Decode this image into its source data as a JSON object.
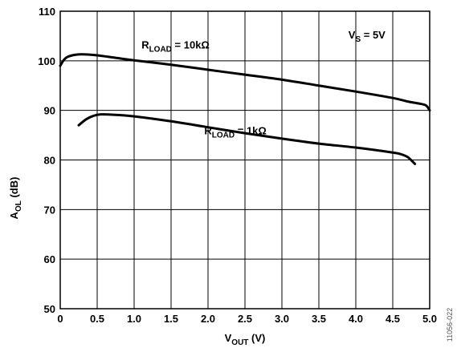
{
  "chart_data": {
    "type": "line",
    "xlabel": {
      "main": "V",
      "sub": "OUT",
      "unit": " (V)"
    },
    "ylabel": {
      "main": "A",
      "sub": "OL",
      "unit": " (dB)"
    },
    "xlim": [
      0,
      5
    ],
    "ylim": [
      50,
      110
    ],
    "grid": true,
    "x_ticks": [
      0,
      0.5,
      1.0,
      1.5,
      2.0,
      2.5,
      3.0,
      3.5,
      4.0,
      4.5,
      5.0
    ],
    "x_tick_labels": [
      "0",
      "0.5",
      "1.0",
      "1.5",
      "2.0",
      "2.5",
      "3.0",
      "3.5",
      "4.0",
      "4.5",
      "5.0"
    ],
    "y_ticks": [
      50,
      60,
      70,
      80,
      90,
      100,
      110
    ],
    "y_tick_labels": [
      "50",
      "60",
      "70",
      "80",
      "90",
      "100",
      "110"
    ],
    "annotations": [
      {
        "main": "V",
        "sub": "S",
        "rest": " = 5V",
        "x": 3.9,
        "y": 104.5
      },
      {
        "main": "R",
        "sub": "LOAD",
        "rest": " = 10kΩ",
        "x": 1.1,
        "y": 102.5
      },
      {
        "main": "R",
        "sub": "LOAD",
        "rest": " = 1kΩ",
        "x": 1.95,
        "y": 85.2
      }
    ],
    "series": [
      {
        "name": "R_LOAD = 10kΩ",
        "x": [
          0,
          0.05,
          0.1,
          0.2,
          0.3,
          0.5,
          0.75,
          1.0,
          1.5,
          2.0,
          2.5,
          3.0,
          3.5,
          4.0,
          4.5,
          4.7,
          4.85,
          4.95,
          5.0
        ],
        "y": [
          99.0,
          100.2,
          100.8,
          101.2,
          101.3,
          101.1,
          100.6,
          100.1,
          99.2,
          98.2,
          97.2,
          96.2,
          95.0,
          93.8,
          92.5,
          91.8,
          91.4,
          91.0,
          90.0
        ]
      },
      {
        "name": "R_LOAD = 1kΩ",
        "x": [
          0.25,
          0.35,
          0.45,
          0.55,
          0.75,
          1.0,
          1.5,
          2.0,
          2.5,
          3.0,
          3.5,
          4.0,
          4.5,
          4.6,
          4.7,
          4.8
        ],
        "y": [
          87.0,
          88.2,
          88.9,
          89.2,
          89.1,
          88.8,
          87.8,
          86.6,
          85.4,
          84.3,
          83.3,
          82.5,
          81.5,
          81.2,
          80.6,
          79.2
        ]
      }
    ]
  },
  "figure_code": "11056-022"
}
